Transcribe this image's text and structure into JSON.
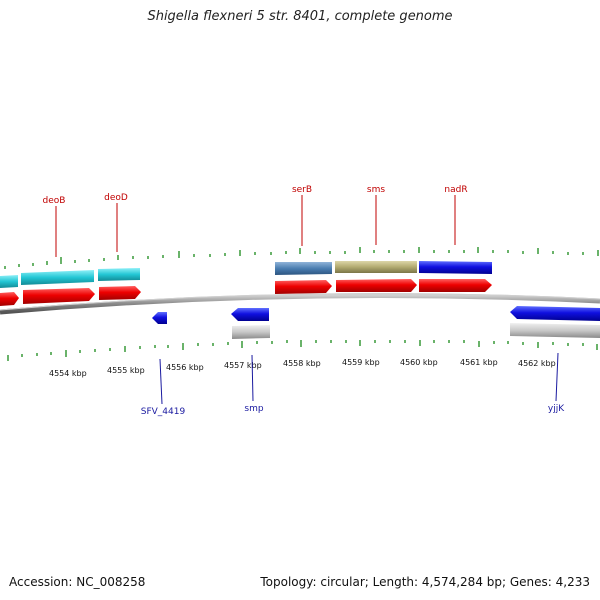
{
  "header": {
    "title": "Shigella flexneri 5 str. 8401, complete genome"
  },
  "footer": {
    "accession": "Accession: NC_008258",
    "topology": "Topology: circular; Length: 4,574,284 bp; Genes: 4,233"
  },
  "scale": {
    "labels": [
      "4554 kbp",
      "4555 kbp",
      "4556 kbp",
      "4557 kbp",
      "4558 kbp",
      "4559 kbp",
      "4560 kbp",
      "4561 kbp",
      "4562 kbp"
    ]
  },
  "genes_top": [
    {
      "label": "deoB",
      "color": "#c00000"
    },
    {
      "label": "deoD",
      "color": "#c00000"
    },
    {
      "label": "serB",
      "color": "#c00000"
    },
    {
      "label": "sms",
      "color": "#c00000"
    },
    {
      "label": "nadR",
      "color": "#c00000"
    }
  ],
  "genes_bottom": [
    {
      "label": "SFV_4419",
      "color": "#1a1aa0"
    },
    {
      "label": "smp",
      "color": "#1a1aa0"
    },
    {
      "label": "yjjK",
      "color": "#1a1aa0"
    }
  ],
  "colors": {
    "forward_gene": "#ee0000",
    "reverse_gene": "#0000ee",
    "cyan_feature": "#22c6d4",
    "steelblue_feature": "#4a7db0",
    "khaki_feature": "#b2aa70",
    "blue_feature": "#1010e0",
    "gray_feature": "#c8c8c8",
    "tick_green": "#1a8a1a",
    "backbone": "#888888"
  }
}
